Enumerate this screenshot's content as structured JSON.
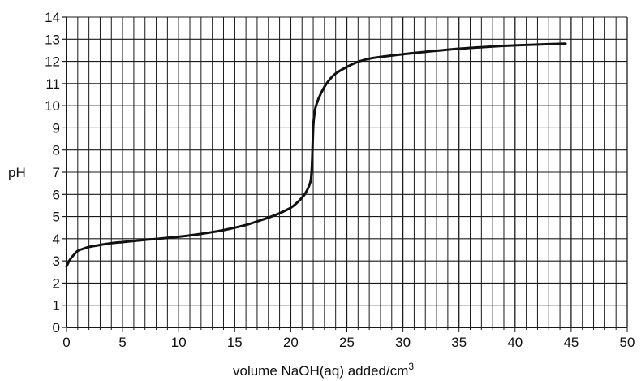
{
  "chart_data": {
    "type": "line",
    "title": "",
    "xlabel": "volume NaOH(aq) added/cm",
    "xlabel_superscript": "3",
    "ylabel": "pH",
    "xlim": [
      0,
      50
    ],
    "ylim": [
      0,
      14
    ],
    "grid": true,
    "x_major_ticks": [
      0,
      5,
      10,
      15,
      20,
      25,
      30,
      35,
      40,
      45,
      50
    ],
    "x_minor_step": 1,
    "y_major_ticks": [
      0,
      1,
      2,
      3,
      4,
      5,
      6,
      7,
      8,
      9,
      10,
      11,
      12,
      13,
      14
    ],
    "series": [
      {
        "x": [
          0,
          0.3,
          0.7,
          1,
          1.5,
          2,
          3,
          4,
          5,
          6,
          7,
          8,
          9,
          10,
          11,
          12,
          13,
          14,
          15,
          16,
          17,
          18,
          19,
          20,
          20.5,
          21,
          21.3,
          21.6,
          21.8,
          21.9,
          22,
          22.1,
          22.2,
          22.5,
          23,
          23.5,
          24,
          25,
          26,
          27,
          28,
          30,
          32,
          35,
          38,
          40,
          42,
          44.5
        ],
        "y": [
          2.75,
          3.05,
          3.3,
          3.45,
          3.55,
          3.63,
          3.72,
          3.8,
          3.85,
          3.9,
          3.95,
          3.99,
          4.04,
          4.09,
          4.15,
          4.22,
          4.3,
          4.39,
          4.5,
          4.62,
          4.78,
          4.95,
          5.15,
          5.4,
          5.6,
          5.85,
          6.05,
          6.35,
          6.7,
          7.5,
          9.0,
          9.6,
          9.9,
          10.35,
          10.85,
          11.2,
          11.45,
          11.75,
          11.98,
          12.12,
          12.2,
          12.32,
          12.43,
          12.57,
          12.67,
          12.72,
          12.76,
          12.8
        ]
      }
    ],
    "colors": {
      "curve": "#111111",
      "grid": "#1a1a1a",
      "text": "#111111"
    }
  }
}
